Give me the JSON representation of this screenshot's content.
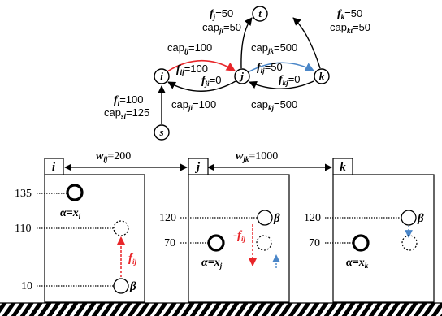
{
  "graph": {
    "nodes": {
      "i": "i",
      "j": "j",
      "k": "k",
      "t": "t",
      "s": "s"
    },
    "edge_labels": {
      "f_j": "f",
      "f_j_sub": "j",
      "f_j_val": "=50",
      "cap_jt": "cap",
      "cap_jt_sub": "jt",
      "cap_jt_val": "=50",
      "f_k": "f",
      "f_k_sub": "k",
      "f_k_val": "=50",
      "cap_kt": "cap",
      "cap_kt_sub": "kt",
      "cap_kt_val": "=50",
      "cap_ij": "cap",
      "cap_ij_sub": "ij",
      "cap_ij_val": "=100",
      "f_ij": "f",
      "f_ij_sub": "ij",
      "f_ij_val": "=100",
      "f_ji": "f",
      "f_ji_sub": "ji",
      "f_ji_val": "=0",
      "cap_jk": "cap",
      "cap_jk_sub": "jk",
      "cap_jk_val": "=500",
      "f_jk": "f",
      "f_jk_sub": "ij",
      "f_jk_val": "=50",
      "f_kj": "f",
      "f_kj_sub": "kj",
      "f_kj_val": "=0",
      "f_i": "f",
      "f_i_sub": "i",
      "f_i_val": "=100",
      "cap_si": "cap",
      "cap_si_sub": "si",
      "cap_si_val": "=125",
      "cap_ji": "cap",
      "cap_ji_sub": "ji",
      "cap_ji_val": "=100",
      "cap_kj": "cap",
      "cap_kj_sub": "kj",
      "cap_kj_val": "=500"
    }
  },
  "boxes": {
    "i": {
      "label": "i",
      "ticks": [
        "135",
        "110",
        "10"
      ],
      "alpha": "α=x",
      "alpha_sub": "i",
      "beta": "β",
      "arrow_label": "f",
      "arrow_label_sub": "ij"
    },
    "j": {
      "label": "j",
      "ticks": [
        "120",
        "70"
      ],
      "alpha": "α=x",
      "alpha_sub": "j",
      "beta": "β",
      "arrow_label": "-f",
      "arrow_label_sub": "ij"
    },
    "k": {
      "label": "k",
      "ticks": [
        "120",
        "70"
      ],
      "alpha": "α=x",
      "alpha_sub": "k",
      "beta": "β"
    }
  },
  "weights": {
    "w_ij": "w",
    "w_ij_sub": "ij",
    "w_ij_val": "=200",
    "w_jk": "w",
    "w_jk_sub": "jk",
    "w_jk_val": "=1000"
  },
  "colors": {
    "red": "#e8262a",
    "blue": "#4a86c8",
    "black": "#000000"
  }
}
